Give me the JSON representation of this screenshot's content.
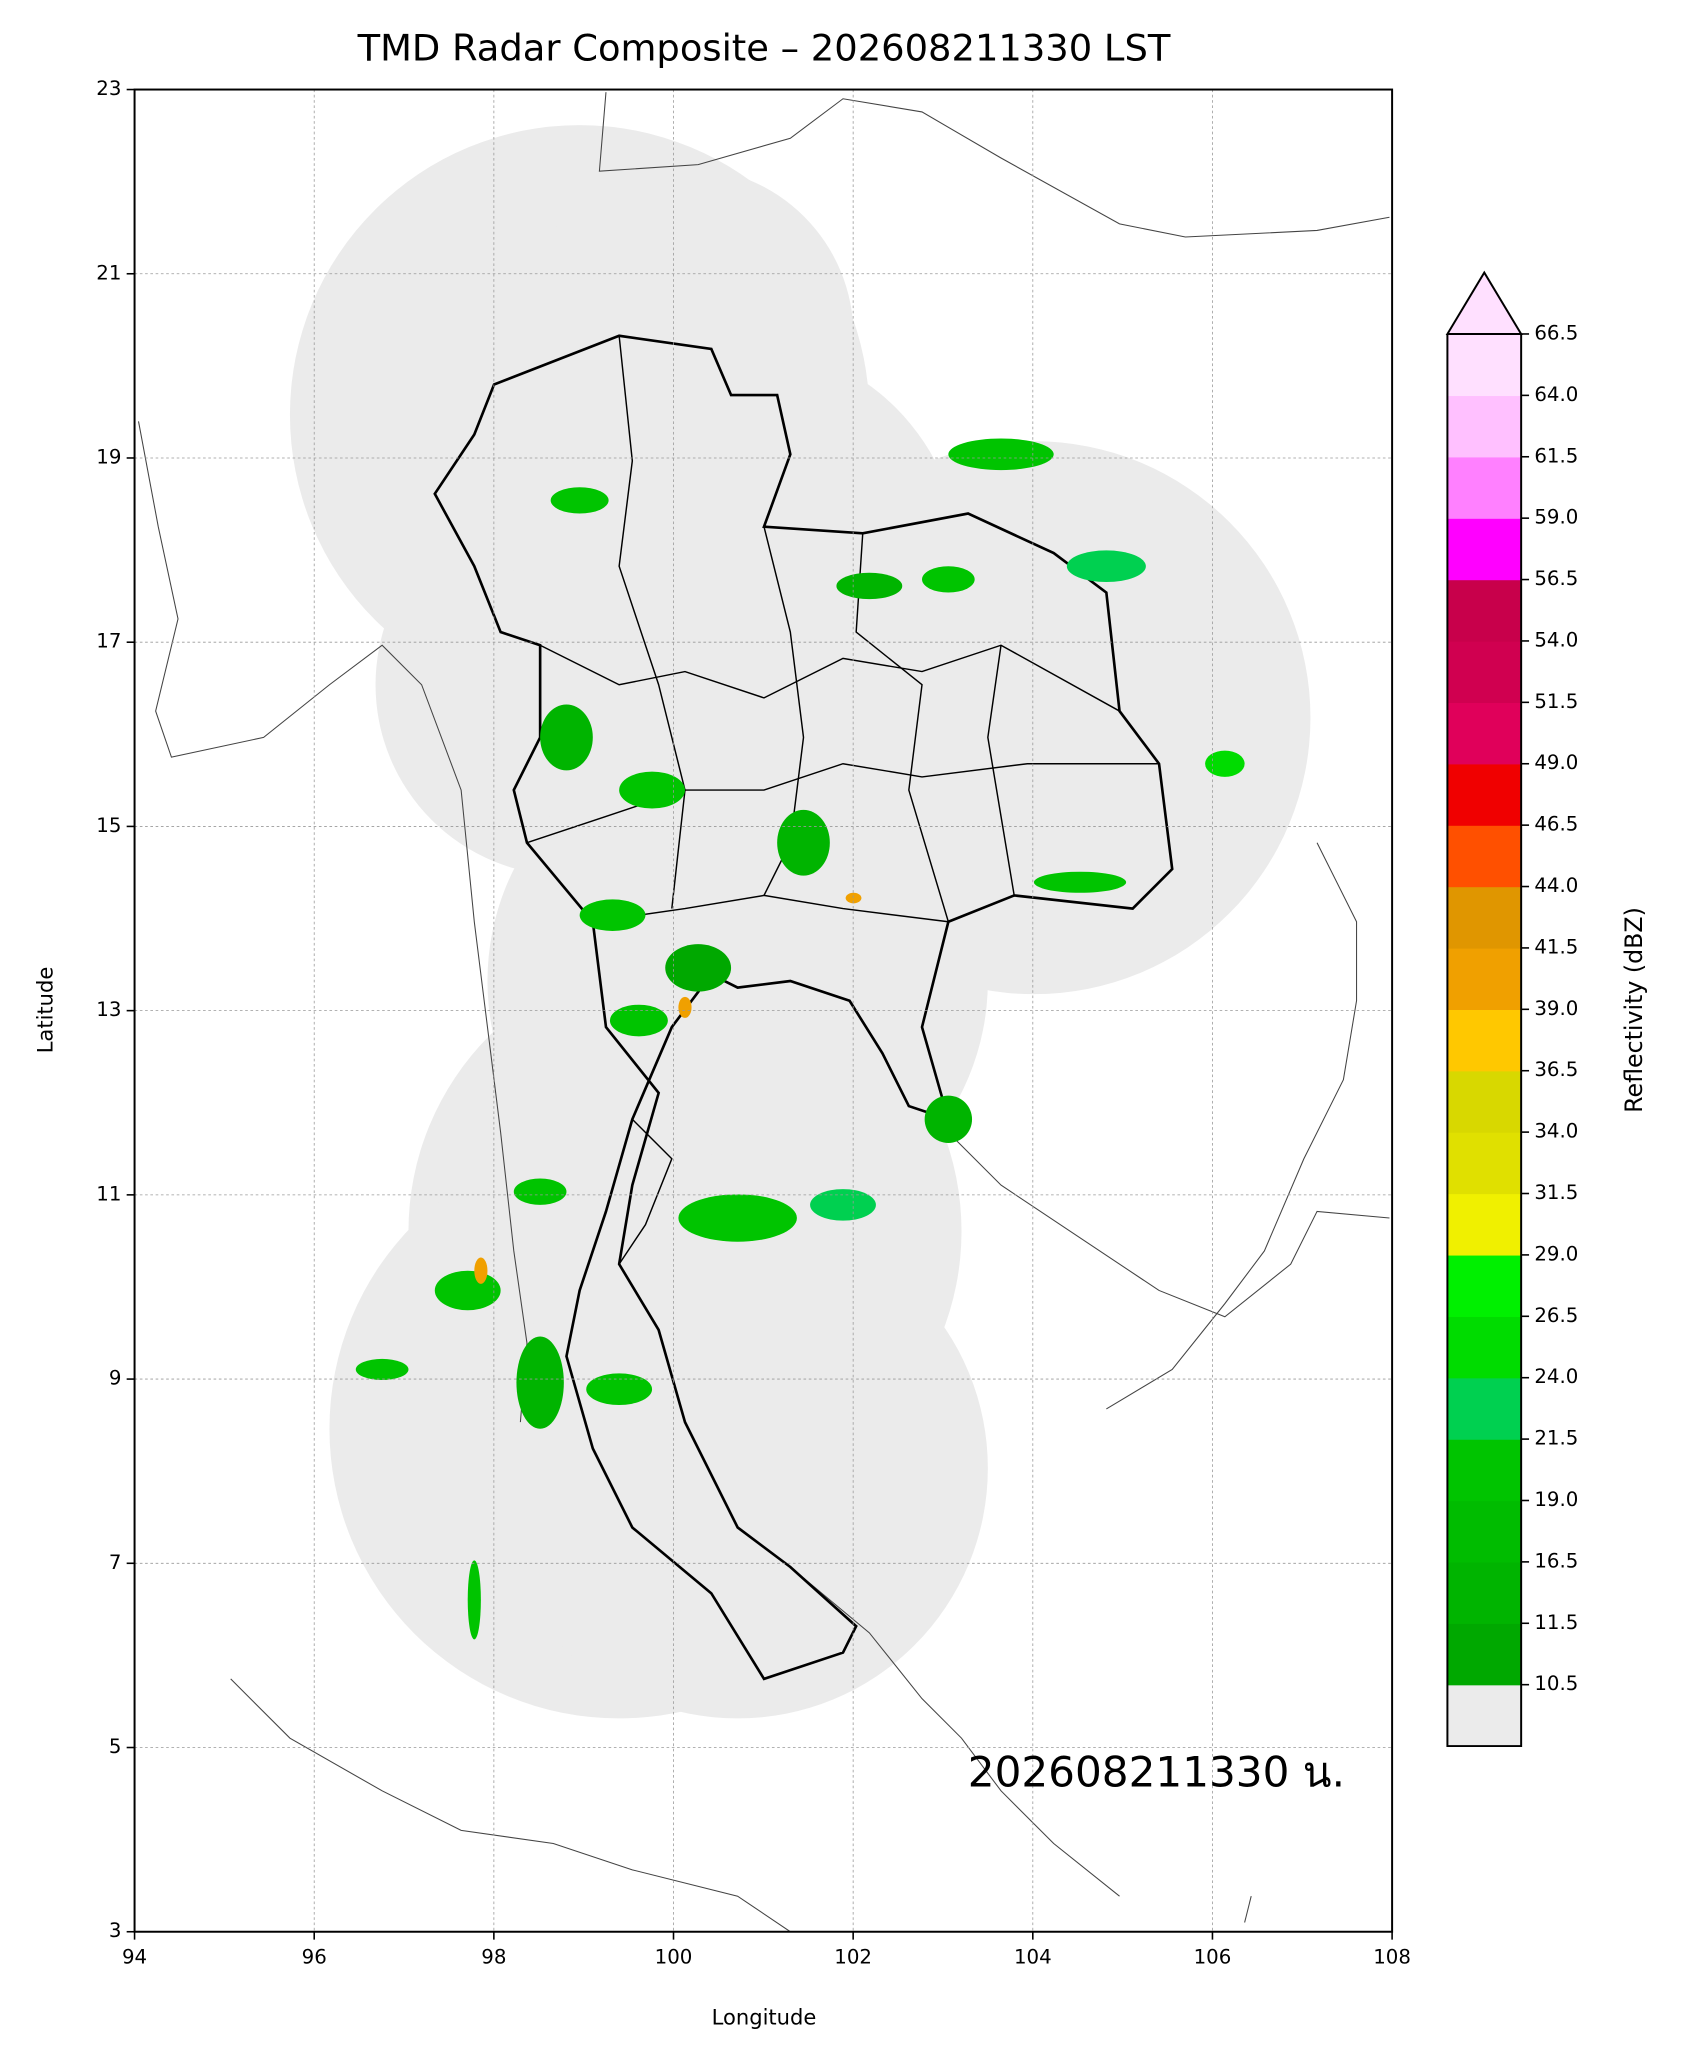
{
  "map": {
    "title": "TMD Radar Composite – 202608211330 LST",
    "xlabel": "Longitude",
    "ylabel": "Latitude",
    "xlim": [
      94,
      108
    ],
    "ylim": [
      3,
      23
    ],
    "xticks": [
      94,
      96,
      98,
      100,
      102,
      104,
      106,
      108
    ],
    "yticks": [
      3,
      5,
      7,
      9,
      11,
      13,
      15,
      17,
      19,
      21,
      23
    ],
    "grid": true,
    "annotation": "202608211330 น.",
    "colorbar": {
      "label": "Reflectivity (dBZ)",
      "ticks": [
        10.5,
        11.5,
        16.5,
        {
          "value": 19,
          "label": "19.0"
        },
        21.5,
        {
          "value": 24,
          "label": "24.0"
        },
        26.5,
        {
          "value": 29,
          "label": "29.0"
        },
        31.5,
        {
          "value": 34,
          "label": "34.0"
        },
        36.5,
        {
          "value": 39,
          "label": "39.0"
        },
        41.5,
        {
          "value": 44,
          "label": "44.0"
        },
        46.5,
        {
          "value": 49,
          "label": "49.0"
        },
        51.5,
        {
          "value": 54,
          "label": "54.0"
        },
        56.5,
        {
          "value": 59,
          "label": "59.0"
        },
        61.5,
        {
          "value": 64,
          "label": "64.0"
        },
        66.5
      ],
      "colors": [
        "#00a800",
        "#00b400",
        "#00bc00",
        "#00c400",
        "#00d050",
        "#00dc00",
        "#00f000",
        "#f0f000",
        "#e0e000",
        "#d8d800",
        "#ffc800",
        "#f0a000",
        "#e09600",
        "#ff5000",
        "#f00000",
        "#e0005a",
        "#d00050",
        "#c8004b",
        "#ff00ff",
        "#ff80ff",
        "#ffc0ff",
        "#ffe0ff"
      ],
      "under_color": "#ebebeb",
      "over_color": "#ffe0ff"
    }
  }
}
